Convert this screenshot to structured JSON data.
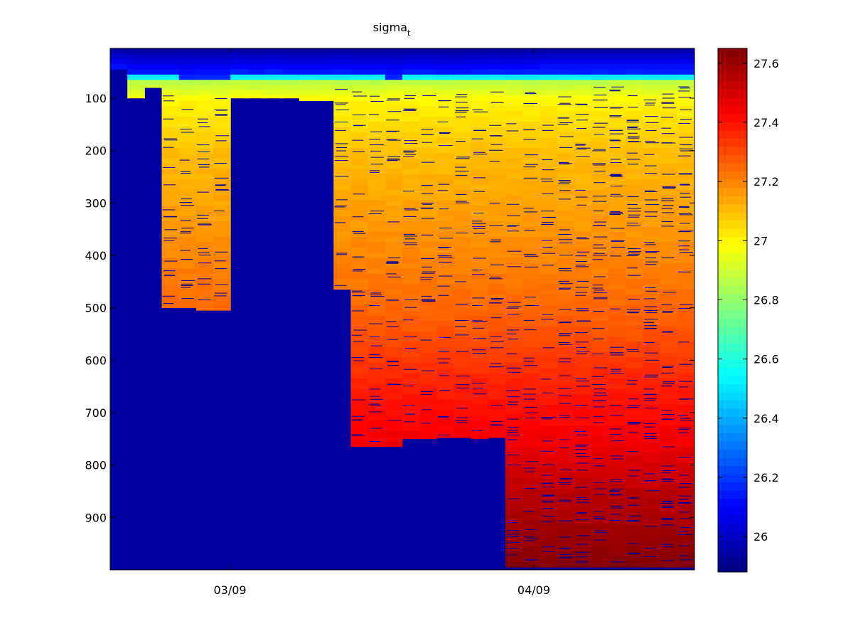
{
  "chart_data": {
    "type": "heatmap",
    "title": "sigma",
    "title_subscript": "t",
    "xlabel": "",
    "ylabel": "",
    "x_tick_labels": [
      "03/09",
      "04/09"
    ],
    "y_ticks": [
      100,
      200,
      300,
      400,
      500,
      600,
      700,
      800,
      900
    ],
    "ylim": [
      5,
      1000
    ],
    "y_reversed": true,
    "grid": false,
    "colorbar": {
      "ticks": [
        26,
        26.2,
        26.4,
        26.6,
        26.8,
        27,
        27.2,
        27.4,
        27.6
      ],
      "range": [
        25.88,
        27.65
      ],
      "colormap": "jet",
      "placement": "right"
    },
    "profiles": [
      {
        "bottom": 45,
        "top_layer": 45
      },
      {
        "bottom": 100,
        "top_layer": 55
      },
      {
        "bottom": 80,
        "top_layer": 55
      },
      {
        "bottom": 500,
        "top_layer": 55
      },
      {
        "bottom": 500,
        "top_layer": 60
      },
      {
        "bottom": 505,
        "top_layer": 58
      },
      {
        "bottom": 505,
        "top_layer": 58
      },
      {
        "bottom": 100,
        "top_layer": 50
      },
      {
        "bottom": 100,
        "top_layer": 55
      },
      {
        "bottom": 100,
        "top_layer": 50
      },
      {
        "bottom": 100,
        "top_layer": 55
      },
      {
        "bottom": 105,
        "top_layer": 55
      },
      {
        "bottom": 105,
        "top_layer": 55
      },
      {
        "bottom": 465,
        "top_layer": 52
      },
      {
        "bottom": 765,
        "top_layer": 55
      },
      {
        "bottom": 765,
        "top_layer": 55
      },
      {
        "bottom": 765,
        "top_layer": 60
      },
      {
        "bottom": 750,
        "top_layer": 52
      },
      {
        "bottom": 750,
        "top_layer": 52
      },
      {
        "bottom": 748,
        "top_layer": 55
      },
      {
        "bottom": 748,
        "top_layer": 55
      },
      {
        "bottom": 750,
        "top_layer": 52
      },
      {
        "bottom": 748,
        "top_layer": 50
      },
      {
        "bottom": 995,
        "top_layer": 52
      },
      {
        "bottom": 995,
        "top_layer": 50
      },
      {
        "bottom": 995,
        "top_layer": 45
      },
      {
        "bottom": 995,
        "top_layer": 45
      },
      {
        "bottom": 995,
        "top_layer": 45
      },
      {
        "bottom": 995,
        "top_layer": 45
      },
      {
        "bottom": 995,
        "top_layer": 45
      },
      {
        "bottom": 995,
        "top_layer": 45
      },
      {
        "bottom": 995,
        "top_layer": 45
      },
      {
        "bottom": 995,
        "top_layer": 45
      },
      {
        "bottom": 995,
        "top_layer": 45
      }
    ],
    "density_profile": [
      {
        "depth": 5,
        "sigma_t": 25.95
      },
      {
        "depth": 30,
        "sigma_t": 26.0
      },
      {
        "depth": 50,
        "sigma_t": 26.2
      },
      {
        "depth": 60,
        "sigma_t": 26.85
      },
      {
        "depth": 100,
        "sigma_t": 27.0
      },
      {
        "depth": 200,
        "sigma_t": 27.1
      },
      {
        "depth": 350,
        "sigma_t": 27.17
      },
      {
        "depth": 500,
        "sigma_t": 27.25
      },
      {
        "depth": 650,
        "sigma_t": 27.38
      },
      {
        "depth": 750,
        "sigma_t": 27.45
      },
      {
        "depth": 850,
        "sigma_t": 27.55
      },
      {
        "depth": 1000,
        "sigma_t": 27.65
      }
    ]
  }
}
